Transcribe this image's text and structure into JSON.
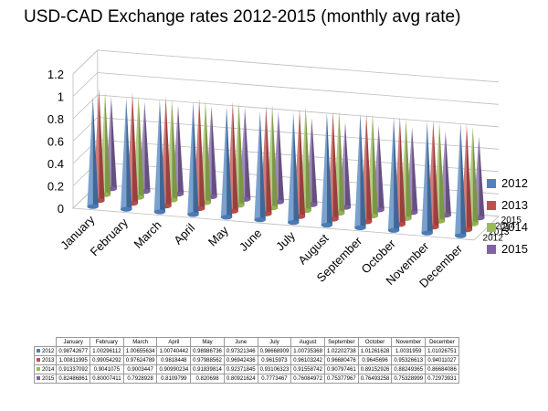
{
  "chart_data": {
    "type": "bar",
    "chart_style": "3d-cone",
    "title": "USD-CAD Exchange rates 2012-2015 (monthly avg rate)",
    "categories": [
      "January",
      "February",
      "March",
      "April",
      "May",
      "June",
      "July",
      "August",
      "September",
      "October",
      "November",
      "December"
    ],
    "series": [
      {
        "name": "2012",
        "color": "#4f81bd",
        "values": [
          0.98742677,
          1.00296112,
          1.00655634,
          1.00740442,
          0.98986736,
          0.97321346,
          0.98668909,
          1.00735368,
          1.02202738,
          1.01261628,
          1.0031959,
          1.01026751
        ]
      },
      {
        "name": "2013",
        "color": "#c0504d",
        "values": [
          1.00811995,
          0.99054292,
          0.97624789,
          0.9818448,
          0.97988562,
          0.96942436,
          0.9615973,
          0.96103242,
          0.96680476,
          0.9645696,
          0.95326613,
          0.94011027
        ]
      },
      {
        "name": "2014",
        "color": "#9bbb59",
        "values": [
          0.91337092,
          0.9041075,
          0.9003447,
          0.90990234,
          0.91839814,
          0.92371845,
          0.93106323,
          0.91558742,
          0.90797461,
          0.89152926,
          0.88249365,
          0.86684086
        ]
      },
      {
        "name": "2015",
        "color": "#8064a2",
        "values": [
          0.82486861,
          0.80007411,
          0.7928928,
          0.8109799,
          0.820698,
          0.80921624,
          0.7773467,
          0.76084972,
          0.75377967,
          0.76493258,
          0.75328999,
          0.72973931
        ]
      }
    ],
    "y_ticks": [
      "0",
      "0.2",
      "0.4",
      "0.6",
      "0.8",
      "1",
      "1.2"
    ],
    "ylim": [
      0,
      1.2
    ],
    "depth_axis_labels": [
      "2012",
      "2013",
      "2014",
      "2015"
    ],
    "grid": true,
    "legend_position": "right",
    "data_table_shown": true
  },
  "table": {
    "header": [
      "January",
      "February",
      "March",
      "April",
      "May",
      "June",
      "July",
      "August",
      "September",
      "October",
      "November",
      "December"
    ],
    "rows": [
      {
        "label": "2012",
        "color": "#4f81bd",
        "cells": [
          "0.98742677",
          "1.00296112",
          "1.00655634",
          "1.00740442",
          "0.98986736",
          "0.97321346",
          "0.98668909",
          "1.00735368",
          "1.02202738",
          "1.01261628",
          "1.0031959",
          "1.01026751"
        ]
      },
      {
        "label": "2013",
        "color": "#c0504d",
        "cells": [
          "1.00811995",
          "0.99054292",
          "0.97624789",
          "0.9818448",
          "0.97988562",
          "0.96942436",
          "0.9615973",
          "0.96103242",
          "0.96680476",
          "0.9645696",
          "0.95326613",
          "0.94011027"
        ]
      },
      {
        "label": "2014",
        "color": "#9bbb59",
        "cells": [
          "0.91337092",
          "0.9041075",
          "0.9003447",
          "0.90990234",
          "0.91839814",
          "0.92371845",
          "0.93106323",
          "0.91558742",
          "0.90797461",
          "0.89152926",
          "0.88249365",
          "0.86684086"
        ]
      },
      {
        "label": "2015",
        "color": "#8064a2",
        "cells": [
          "0.82486861",
          "0.80007411",
          "0.7928928",
          "0.8109799",
          "0.820698",
          "0.80921624",
          "0.7773467",
          "0.76084972",
          "0.75377967",
          "0.76493258",
          "0.75328999",
          "0.72973931"
        ]
      }
    ]
  }
}
